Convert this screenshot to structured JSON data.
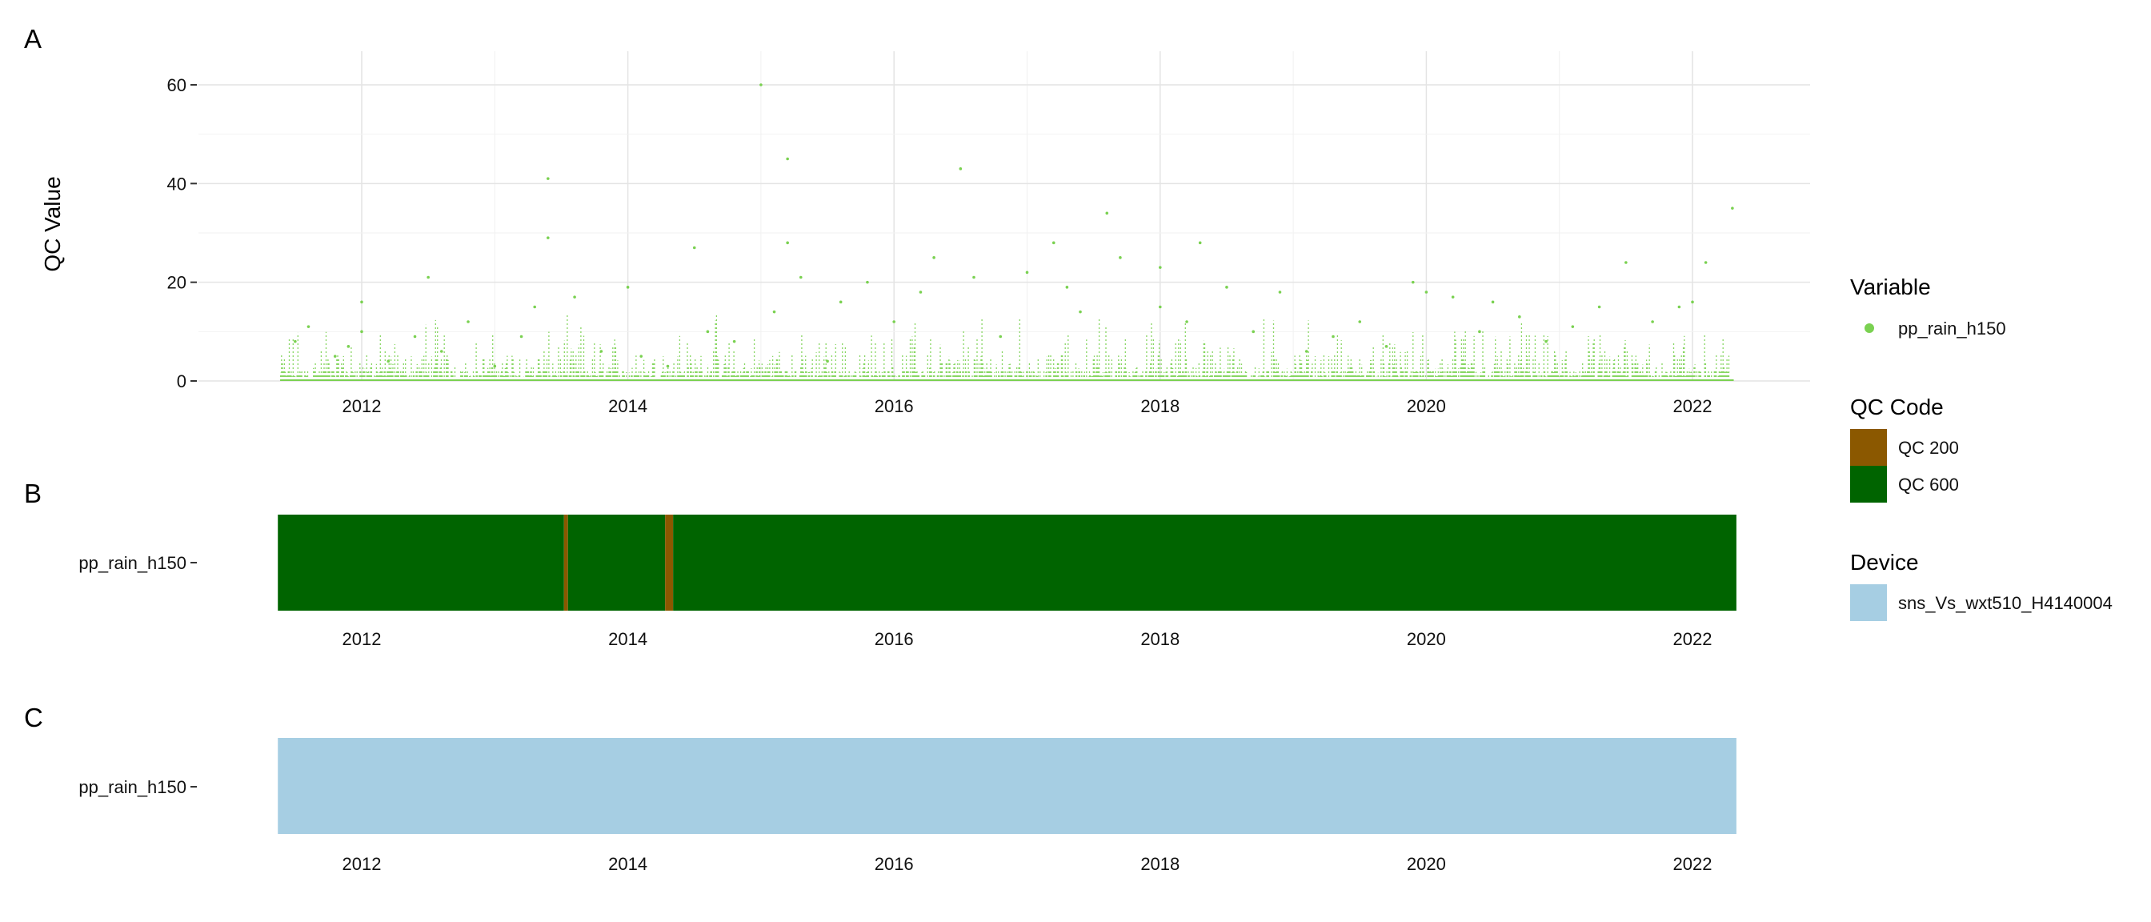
{
  "colors": {
    "rain_points": "#7ad151",
    "qc_200": "#8b5800",
    "qc_600": "#006400",
    "device": "#a6cee3",
    "grid": "#e4e4e4"
  },
  "legend": {
    "variable_title": "Variable",
    "variable_item": "pp_rain_h150",
    "qc_title": "QC Code",
    "qc_items": [
      "QC 200",
      "QC 600"
    ],
    "device_title": "Device",
    "device_item": "sns_Vs_wxt510_H4140004"
  },
  "chart_data": [
    {
      "panel": "A",
      "type": "scatter",
      "title": "",
      "xlabel": "",
      "ylabel": "QC Value",
      "xlim": [
        2011.37,
        2022.33
      ],
      "ylim": [
        0,
        60
      ],
      "x_ticks": [
        2012,
        2014,
        2016,
        2018,
        2020,
        2022
      ],
      "y_ticks": [
        0,
        20,
        40,
        60
      ],
      "grid": true,
      "legend_position": "right",
      "series": [
        {
          "name": "pp_rain_h150",
          "points": [
            [
              2011.5,
              8
            ],
            [
              2011.6,
              11
            ],
            [
              2011.8,
              5
            ],
            [
              2011.9,
              7
            ],
            [
              2012.0,
              10
            ],
            [
              2012.0,
              16
            ],
            [
              2012.2,
              4
            ],
            [
              2012.4,
              9
            ],
            [
              2012.5,
              21
            ],
            [
              2012.6,
              6
            ],
            [
              2012.8,
              12
            ],
            [
              2013.0,
              3
            ],
            [
              2013.2,
              9
            ],
            [
              2013.3,
              15
            ],
            [
              2013.4,
              29
            ],
            [
              2013.4,
              41
            ],
            [
              2013.6,
              17
            ],
            [
              2013.8,
              6
            ],
            [
              2014.0,
              19
            ],
            [
              2014.1,
              5
            ],
            [
              2014.3,
              3
            ],
            [
              2014.5,
              27
            ],
            [
              2014.6,
              10
            ],
            [
              2014.8,
              8
            ],
            [
              2015.0,
              60
            ],
            [
              2015.1,
              14
            ],
            [
              2015.2,
              45
            ],
            [
              2015.2,
              28
            ],
            [
              2015.3,
              21
            ],
            [
              2015.5,
              4
            ],
            [
              2015.6,
              16
            ],
            [
              2015.8,
              20
            ],
            [
              2016.0,
              12
            ],
            [
              2016.2,
              18
            ],
            [
              2016.3,
              25
            ],
            [
              2016.5,
              43
            ],
            [
              2016.6,
              21
            ],
            [
              2016.8,
              9
            ],
            [
              2017.0,
              22
            ],
            [
              2017.2,
              28
            ],
            [
              2017.3,
              19
            ],
            [
              2017.4,
              14
            ],
            [
              2017.6,
              34
            ],
            [
              2017.7,
              25
            ],
            [
              2018.0,
              23
            ],
            [
              2018.0,
              15
            ],
            [
              2018.2,
              12
            ],
            [
              2018.3,
              28
            ],
            [
              2018.5,
              19
            ],
            [
              2018.7,
              10
            ],
            [
              2018.9,
              18
            ],
            [
              2019.1,
              6
            ],
            [
              2019.3,
              9
            ],
            [
              2019.5,
              12
            ],
            [
              2019.7,
              7
            ],
            [
              2019.9,
              20
            ],
            [
              2020.0,
              18
            ],
            [
              2020.2,
              17
            ],
            [
              2020.4,
              10
            ],
            [
              2020.5,
              16
            ],
            [
              2020.7,
              13
            ],
            [
              2020.9,
              8
            ],
            [
              2021.1,
              11
            ],
            [
              2021.3,
              15
            ],
            [
              2021.5,
              24
            ],
            [
              2021.7,
              12
            ],
            [
              2021.9,
              15
            ],
            [
              2022.0,
              16
            ],
            [
              2022.1,
              24
            ],
            [
              2022.3,
              35
            ]
          ]
        }
      ]
    },
    {
      "panel": "B",
      "type": "heatmap",
      "title": "",
      "xlabel": "",
      "ylabel": "",
      "xlim": [
        2011.37,
        2022.33
      ],
      "x_ticks": [
        2012,
        2014,
        2016,
        2018,
        2020,
        2022
      ],
      "y_categories": [
        "pp_rain_h150"
      ],
      "legend_position": "right",
      "segments": [
        {
          "code": "QC 600",
          "start": 2011.37,
          "end": 2013.52
        },
        {
          "code": "QC 200",
          "start": 2013.52,
          "end": 2013.55
        },
        {
          "code": "QC 600",
          "start": 2013.55,
          "end": 2014.28
        },
        {
          "code": "QC 200",
          "start": 2014.28,
          "end": 2014.34
        },
        {
          "code": "QC 600",
          "start": 2014.34,
          "end": 2022.33
        }
      ]
    },
    {
      "panel": "C",
      "type": "heatmap",
      "title": "",
      "xlabel": "",
      "ylabel": "",
      "xlim": [
        2011.37,
        2022.33
      ],
      "x_ticks": [
        2012,
        2014,
        2016,
        2018,
        2020,
        2022
      ],
      "y_categories": [
        "pp_rain_h150"
      ],
      "legend_position": "right",
      "segments": [
        {
          "device": "sns_Vs_wxt510_H4140004",
          "start": 2011.37,
          "end": 2022.33
        }
      ]
    }
  ]
}
